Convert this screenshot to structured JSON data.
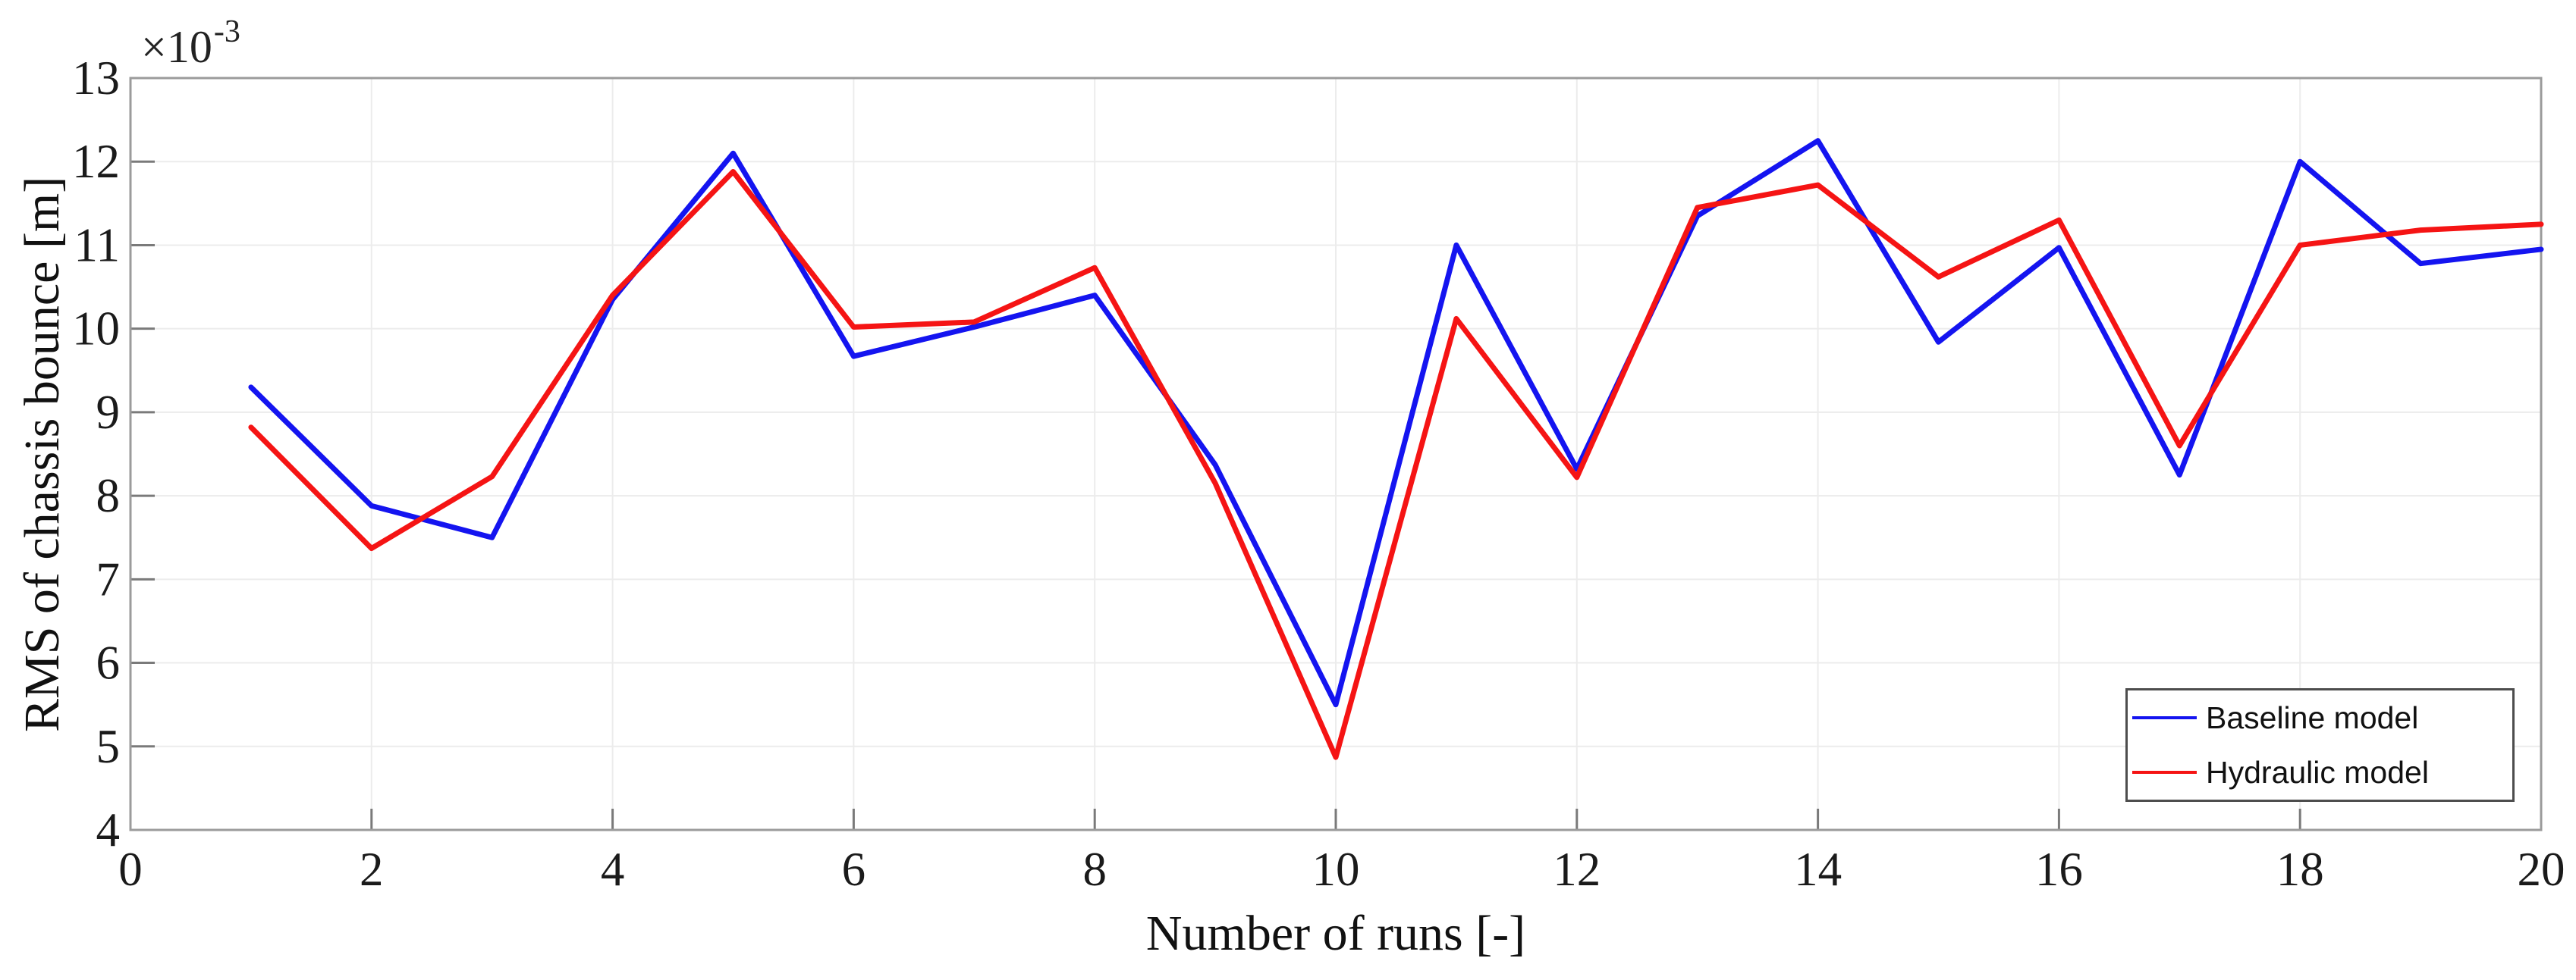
{
  "figure": {
    "background": "#ffffff"
  },
  "chart_data": {
    "type": "line",
    "title": "",
    "xlabel": "Number of runs [-]",
    "ylabel": "RMS of chassis bounce [m]",
    "offset": {
      "base": "×10",
      "exponent": "-3"
    },
    "values_unit": "1e-3 m",
    "x": [
      1,
      2,
      3,
      4,
      5,
      6,
      7,
      8,
      9,
      10,
      11,
      12,
      13,
      14,
      15,
      16,
      17,
      18,
      19,
      20
    ],
    "series": [
      {
        "name": "Baseline model",
        "color": "#1414f0",
        "values": [
          9.3,
          7.88,
          7.5,
          10.35,
          12.1,
          9.67,
          10.02,
          10.4,
          8.37,
          5.5,
          11.0,
          8.32,
          11.35,
          12.25,
          9.84,
          10.97,
          8.25,
          12.0,
          10.78,
          10.95
        ]
      },
      {
        "name": "Hydraulic model",
        "color": "#f51414",
        "values": [
          8.82,
          7.37,
          8.23,
          10.4,
          11.88,
          10.02,
          10.08,
          10.73,
          8.15,
          4.87,
          10.12,
          8.22,
          11.45,
          11.72,
          10.62,
          11.3,
          8.6,
          11.0,
          11.18,
          11.25
        ]
      }
    ],
    "xlim": [
      0,
      20
    ],
    "ylim": [
      4,
      13
    ],
    "xticks": [
      0,
      2,
      4,
      6,
      8,
      10,
      12,
      14,
      16,
      18,
      20
    ],
    "yticks": [
      4,
      5,
      6,
      7,
      8,
      9,
      10,
      11,
      12,
      13
    ],
    "grid": true,
    "grid_color": "#ececec",
    "frame_color": "#9b9b9b",
    "tick_color": "#7a7a7a",
    "text_color": "#1a1a1a",
    "legend_position": "bottom-right"
  }
}
